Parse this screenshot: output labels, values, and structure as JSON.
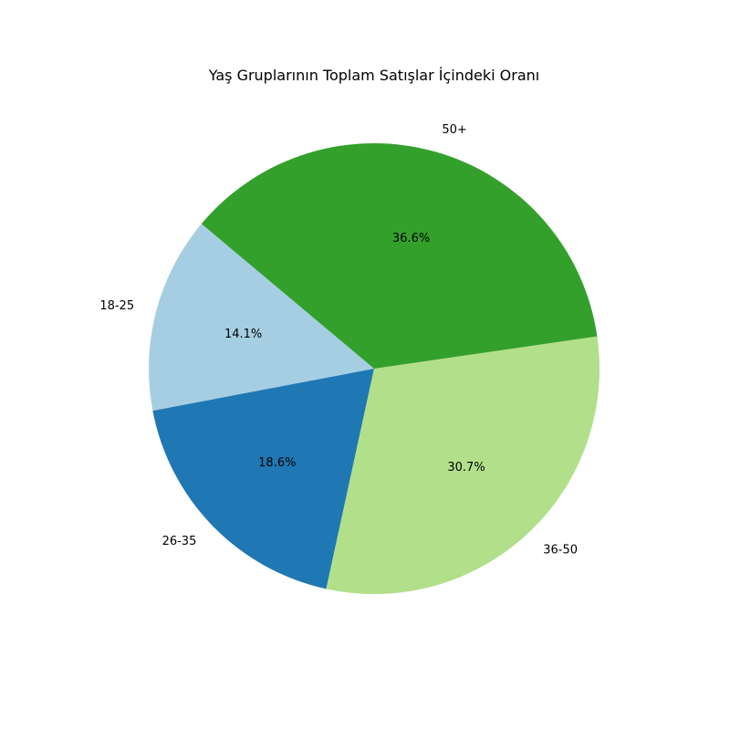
{
  "chart_data": {
    "type": "pie",
    "title": "Yaş Gruplarının Toplam Satışlar İçindeki Oranı",
    "categories": [
      "18-25",
      "26-35",
      "36-50",
      "50+"
    ],
    "values": [
      14.1,
      18.6,
      30.7,
      36.6
    ],
    "percent_labels": [
      "14.1%",
      "18.6%",
      "30.7%",
      "36.6%"
    ],
    "colors": [
      "#a6cee3",
      "#1f78b4",
      "#b2df8a",
      "#33a02c"
    ],
    "start_angle_deg": 140,
    "direction": "counterclockwise",
    "legend": "none"
  }
}
